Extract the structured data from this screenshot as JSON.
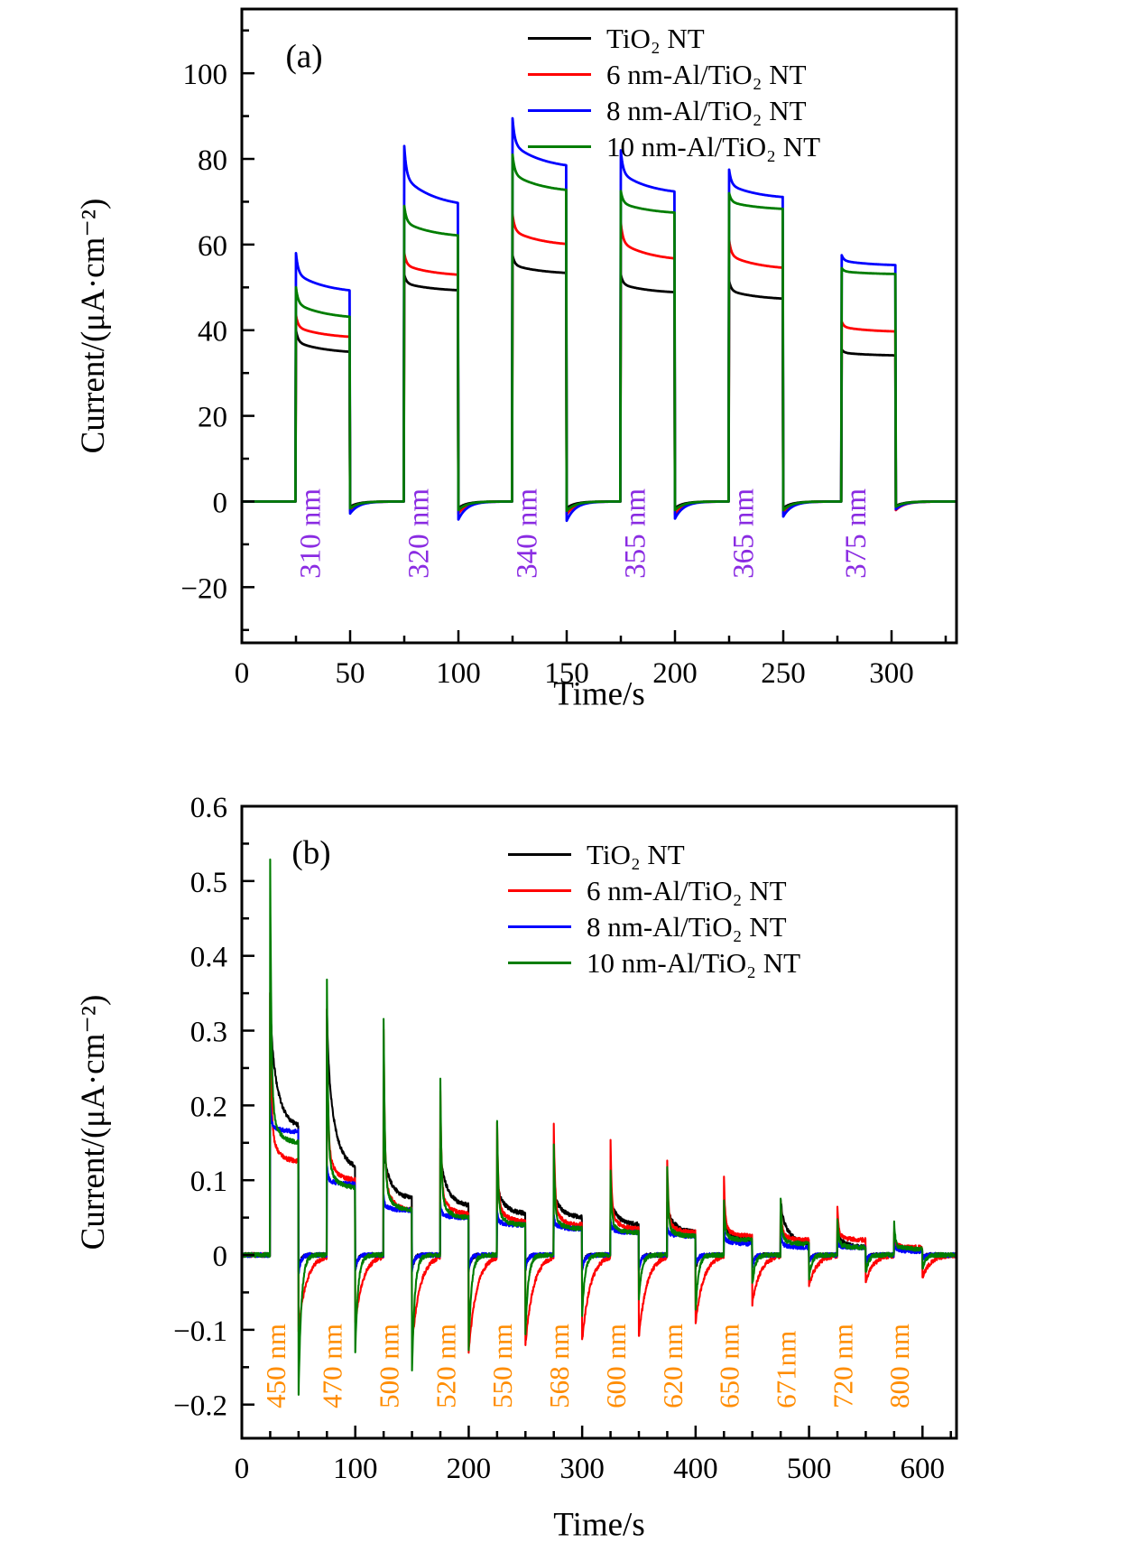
{
  "figure": {
    "background": "#ffffff",
    "frame_color": "#000000"
  },
  "chart_data": [
    {
      "type": "line",
      "panel_label": "(a)",
      "xlabel": "Time/s",
      "ylabel": "Current/(μA·cm⁻²)",
      "xlim": [
        0,
        330
      ],
      "ylim": [
        -33,
        115
      ],
      "xticks": {
        "values": [
          0,
          50,
          100,
          150,
          200,
          250,
          300
        ],
        "labels": [
          "0",
          "50",
          "100",
          "150",
          "200",
          "250",
          "300"
        ]
      },
      "yticks": {
        "values": [
          -20,
          0,
          20,
          40,
          60,
          80,
          100
        ],
        "labels": [
          "−20",
          "0",
          "20",
          "40",
          "60",
          "80",
          "100"
        ]
      },
      "x_minor_step": 25,
      "y_minor_step": 10,
      "grid": false,
      "legend_position": "top-right-inside",
      "wavelength_label_color": "#8A2BE2",
      "noise": 0,
      "pulses": [
        {
          "label": "310 nm",
          "on": 25,
          "off": 50
        },
        {
          "label": "320 nm",
          "on": 75,
          "off": 100
        },
        {
          "label": "340 nm",
          "on": 125,
          "off": 150
        },
        {
          "label": "355 nm",
          "on": 175,
          "off": 200
        },
        {
          "label": "365 nm",
          "on": 225,
          "off": 250
        },
        {
          "label": "375 nm",
          "on": 277,
          "off": 302
        }
      ],
      "pulse_value_format": "[peak, end_of_pulse, undershoot] in μA·cm⁻²",
      "series": [
        {
          "name": "TiO₂ NT",
          "color": "#000000",
          "decay": {
            "fast_frac": 0.5,
            "tau_fast": 1.0,
            "tau_slow": 14,
            "tau_rec": 4
          },
          "pulse_values": [
            [
              40,
              34.5,
              -1.2
            ],
            [
              53,
              49,
              -1.5
            ],
            [
              57.5,
              53,
              -1.5
            ],
            [
              53,
              48.5,
              -1.5
            ],
            [
              51.5,
              47,
              -1.5
            ],
            [
              35.5,
              34,
              -1.0
            ]
          ]
        },
        {
          "name": "6 nm-Al/TiO₂ NT",
          "color": "#ff0000",
          "decay": {
            "fast_frac": 0.5,
            "tau_fast": 1.0,
            "tau_slow": 14,
            "tau_rec": 4
          },
          "pulse_values": [
            [
              43.5,
              38,
              -2.2
            ],
            [
              58,
              52.5,
              -2.8
            ],
            [
              67,
              59.5,
              -3.0
            ],
            [
              65,
              56,
              -3.0
            ],
            [
              61,
              54,
              -2.8
            ],
            [
              42,
              39.5,
              -2.0
            ]
          ]
        },
        {
          "name": "8 nm-Al/TiO₂ NT",
          "color": "#0000ff",
          "decay": {
            "fast_frac": 0.5,
            "tau_fast": 1.0,
            "tau_slow": 14,
            "tau_rec": 4
          },
          "pulse_values": [
            [
              58,
              48.5,
              -2.8
            ],
            [
              83,
              68.5,
              -4.2
            ],
            [
              89.5,
              77.5,
              -4.5
            ],
            [
              82,
              71.5,
              -4.0
            ],
            [
              77.5,
              70.5,
              -3.5
            ],
            [
              57.5,
              55,
              -1.8
            ]
          ]
        },
        {
          "name": "10 nm-Al/TiO₂ NT",
          "color": "#007d00",
          "decay": {
            "fast_frac": 0.5,
            "tau_fast": 1.0,
            "tau_slow": 14,
            "tau_rec": 4
          },
          "pulse_values": [
            [
              50,
              42.5,
              -1.6
            ],
            [
              69,
              61.5,
              -2.0
            ],
            [
              81,
              72,
              -2.2
            ],
            [
              72.5,
              67,
              -2.0
            ],
            [
              72,
              68,
              -2.0
            ],
            [
              54.5,
              53,
              -1.2
            ]
          ]
        }
      ]
    },
    {
      "type": "line",
      "panel_label": "(b)",
      "xlabel": "Time/s",
      "ylabel": "Current/(μA·cm⁻²)",
      "xlim": [
        0,
        630
      ],
      "ylim": [
        -0.245,
        0.6
      ],
      "xticks": {
        "values": [
          0,
          100,
          200,
          300,
          400,
          500,
          600
        ],
        "labels": [
          "0",
          "100",
          "200",
          "300",
          "400",
          "500",
          "600"
        ]
      },
      "yticks": {
        "values": [
          -0.2,
          -0.1,
          0,
          0.1,
          0.2,
          0.3,
          0.4,
          0.5,
          0.6
        ],
        "labels": [
          "−0.2",
          "−0.1",
          "0",
          "0.1",
          "0.2",
          "0.3",
          "0.4",
          "0.5",
          "0.6"
        ]
      },
      "x_minor_step": 25,
      "y_minor_step": 0.05,
      "grid": false,
      "legend_position": "top-right-inside",
      "wavelength_label_color": "#FF8C00",
      "noise": 0.0028,
      "pulses": [
        {
          "label": "450 nm",
          "on": 25,
          "off": 50
        },
        {
          "label": "470 nm",
          "on": 75,
          "off": 100
        },
        {
          "label": "500 nm",
          "on": 125,
          "off": 150
        },
        {
          "label": "520 nm",
          "on": 175,
          "off": 200
        },
        {
          "label": "550 nm",
          "on": 225,
          "off": 250
        },
        {
          "label": "568 nm",
          "on": 275,
          "off": 300
        },
        {
          "label": "600 nm",
          "on": 325,
          "off": 350
        },
        {
          "label": "620 nm",
          "on": 375,
          "off": 400
        },
        {
          "label": "650 nm",
          "on": 425,
          "off": 450
        },
        {
          "label": "671nm",
          "on": 475,
          "off": 500
        },
        {
          "label": "720 nm",
          "on": 525,
          "off": 550
        },
        {
          "label": "800 nm",
          "on": 575,
          "off": 600
        }
      ],
      "pulse_value_format": "[peak, end_of_pulse, undershoot] in μA·cm⁻²",
      "series": [
        {
          "name": "TiO₂ NT",
          "color": "#000000",
          "decay": {
            "fast_frac": 0.25,
            "tau_fast": 1.0,
            "tau_slow": 7,
            "tau_rec": 2
          },
          "pulse_values": [
            [
              0.35,
              0.17,
              -0.02
            ],
            [
              0.33,
              0.115,
              -0.02
            ],
            [
              0.15,
              0.075,
              -0.02
            ],
            [
              0.145,
              0.065,
              -0.02
            ],
            [
              0.1,
              0.055,
              -0.02
            ],
            [
              0.09,
              0.05,
              -0.02
            ],
            [
              0.08,
              0.04,
              -0.02
            ],
            [
              0.07,
              0.03,
              -0.02
            ],
            [
              0.045,
              0.02,
              -0.015
            ],
            [
              0.075,
              0.015,
              -0.01
            ],
            [
              0.03,
              0.01,
              -0.01
            ],
            [
              0.02,
              0.005,
              -0.005
            ]
          ]
        },
        {
          "name": "6 nm-Al/TiO₂ NT",
          "color": "#ff0000",
          "decay": {
            "fast_frac": 0.8,
            "tau_fast": 1.0,
            "tau_slow": 6,
            "tau_rec": 7
          },
          "pulse_values": [
            [
              0.35,
              0.125,
              -0.1
            ],
            [
              0.33,
              0.1,
              -0.09
            ],
            [
              0.3,
              0.06,
              -0.12
            ],
            [
              0.22,
              0.055,
              -0.13
            ],
            [
              0.18,
              0.045,
              -0.12
            ],
            [
              0.175,
              0.04,
              -0.115
            ],
            [
              0.155,
              0.035,
              -0.11
            ],
            [
              0.125,
              0.03,
              -0.09
            ],
            [
              0.105,
              0.025,
              -0.065
            ],
            [
              0.075,
              0.02,
              -0.04
            ],
            [
              0.065,
              0.02,
              -0.035
            ],
            [
              0.03,
              0.01,
              -0.03
            ]
          ]
        },
        {
          "name": "8 nm-Al/TiO₂ NT",
          "color": "#0000ff",
          "decay": {
            "fast_frac": 0.7,
            "tau_fast": 0.8,
            "tau_slow": 6,
            "tau_rec": 2
          },
          "pulse_values": [
            [
              0.205,
              0.165,
              -0.025
            ],
            [
              0.12,
              0.095,
              -0.02
            ],
            [
              0.08,
              0.06,
              -0.02
            ],
            [
              0.07,
              0.05,
              -0.02
            ],
            [
              0.06,
              0.04,
              -0.02
            ],
            [
              0.055,
              0.035,
              -0.02
            ],
            [
              0.05,
              0.03,
              -0.02
            ],
            [
              0.04,
              0.025,
              -0.015
            ],
            [
              0.035,
              0.015,
              -0.015
            ],
            [
              0.03,
              0.01,
              -0.01
            ],
            [
              0.02,
              0.01,
              -0.01
            ],
            [
              0.015,
              0.005,
              -0.005
            ]
          ]
        },
        {
          "name": "10 nm-Al/TiO₂ NT",
          "color": "#007d00",
          "decay": {
            "fast_frac": 0.85,
            "tau_fast": 1.0,
            "tau_slow": 6,
            "tau_rec": 2.5
          },
          "pulse_values": [
            [
              0.53,
              0.15,
              -0.185
            ],
            [
              0.37,
              0.09,
              -0.13
            ],
            [
              0.315,
              0.06,
              -0.155
            ],
            [
              0.235,
              0.05,
              -0.125
            ],
            [
              0.18,
              0.04,
              -0.105
            ],
            [
              0.15,
              0.035,
              -0.08
            ],
            [
              0.115,
              0.03,
              -0.06
            ],
            [
              0.12,
              0.025,
              -0.075
            ],
            [
              0.075,
              0.02,
              -0.04
            ],
            [
              0.075,
              0.015,
              -0.03
            ],
            [
              0.05,
              0.01,
              -0.025
            ],
            [
              0.045,
              0.008,
              -0.02
            ]
          ]
        }
      ]
    }
  ]
}
